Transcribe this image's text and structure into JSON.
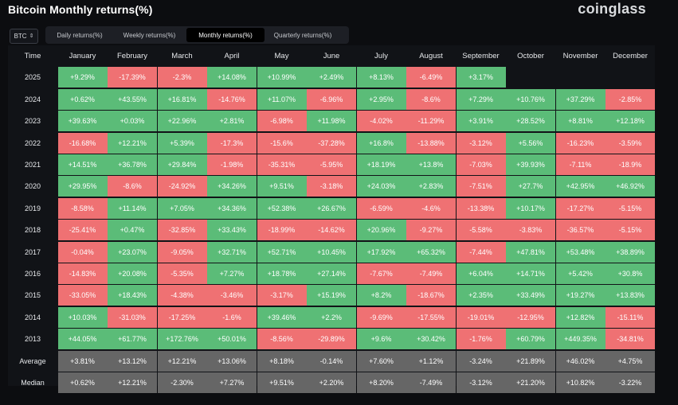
{
  "header": {
    "title": "Bitcoin Monthly returns(%)",
    "logo": "coinglass"
  },
  "controls": {
    "asset": "BTC",
    "tabs": [
      "Daily returns(%)",
      "Weekly returns(%)",
      "Monthly returns(%)",
      "Quarterly returns(%)"
    ],
    "active_tab": 2
  },
  "table": {
    "headers": [
      "Time",
      "January",
      "February",
      "March",
      "April",
      "May",
      "June",
      "July",
      "August",
      "September",
      "October",
      "November",
      "December"
    ],
    "rows": [
      {
        "year": "2025",
        "values": [
          "+9.29%",
          "-17.39%",
          "-2.3%",
          "+14.08%",
          "+10.99%",
          "+2.49%",
          "+8.13%",
          "-6.49%",
          "+3.17%",
          "",
          "",
          ""
        ]
      },
      {
        "year": "2024",
        "values": [
          "+0.62%",
          "+43.55%",
          "+16.81%",
          "-14.76%",
          "+11.07%",
          "-6.96%",
          "+2.95%",
          "-8.6%",
          "+7.29%",
          "+10.76%",
          "+37.29%",
          "-2.85%"
        ]
      },
      {
        "year": "2023",
        "values": [
          "+39.63%",
          "+0.03%",
          "+22.96%",
          "+2.81%",
          "-6.98%",
          "+11.98%",
          "-4.02%",
          "-11.29%",
          "+3.91%",
          "+28.52%",
          "+8.81%",
          "+12.18%"
        ]
      },
      {
        "year": "2022",
        "values": [
          "-16.68%",
          "+12.21%",
          "+5.39%",
          "-17.3%",
          "-15.6%",
          "-37.28%",
          "+16.8%",
          "-13.88%",
          "-3.12%",
          "+5.56%",
          "-16.23%",
          "-3.59%"
        ]
      },
      {
        "year": "2021",
        "values": [
          "+14.51%",
          "+36.78%",
          "+29.84%",
          "-1.98%",
          "-35.31%",
          "-5.95%",
          "+18.19%",
          "+13.8%",
          "-7.03%",
          "+39.93%",
          "-7.11%",
          "-18.9%"
        ]
      },
      {
        "year": "2020",
        "values": [
          "+29.95%",
          "-8.6%",
          "-24.92%",
          "+34.26%",
          "+9.51%",
          "-3.18%",
          "+24.03%",
          "+2.83%",
          "-7.51%",
          "+27.7%",
          "+42.95%",
          "+46.92%"
        ]
      },
      {
        "year": "2019",
        "values": [
          "-8.58%",
          "+11.14%",
          "+7.05%",
          "+34.36%",
          "+52.38%",
          "+26.67%",
          "-6.59%",
          "-4.6%",
          "-13.38%",
          "+10.17%",
          "-17.27%",
          "-5.15%"
        ]
      },
      {
        "year": "2018",
        "values": [
          "-25.41%",
          "+0.47%",
          "-32.85%",
          "+33.43%",
          "-18.99%",
          "-14.62%",
          "+20.96%",
          "-9.27%",
          "-5.58%",
          "-3.83%",
          "-36.57%",
          "-5.15%"
        ]
      },
      {
        "year": "2017",
        "values": [
          "-0.04%",
          "+23.07%",
          "-9.05%",
          "+32.71%",
          "+52.71%",
          "+10.45%",
          "+17.92%",
          "+65.32%",
          "-7.44%",
          "+47.81%",
          "+53.48%",
          "+38.89%"
        ]
      },
      {
        "year": "2016",
        "values": [
          "-14.83%",
          "+20.08%",
          "-5.35%",
          "+7.27%",
          "+18.78%",
          "+27.14%",
          "-7.67%",
          "-7.49%",
          "+6.04%",
          "+14.71%",
          "+5.42%",
          "+30.8%"
        ]
      },
      {
        "year": "2015",
        "values": [
          "-33.05%",
          "+18.43%",
          "-4.38%",
          "-3.46%",
          "-3.17%",
          "+15.19%",
          "+8.2%",
          "-18.67%",
          "+2.35%",
          "+33.49%",
          "+19.27%",
          "+13.83%"
        ]
      },
      {
        "year": "2014",
        "values": [
          "+10.03%",
          "-31.03%",
          "-17.25%",
          "-1.6%",
          "+39.46%",
          "+2.2%",
          "-9.69%",
          "-17.55%",
          "-19.01%",
          "-12.95%",
          "+12.82%",
          "-15.11%"
        ]
      },
      {
        "year": "2013",
        "values": [
          "+44.05%",
          "+61.77%",
          "+172.76%",
          "+50.01%",
          "-8.56%",
          "-29.89%",
          "+9.6%",
          "+30.42%",
          "-1.76%",
          "+60.79%",
          "+449.35%",
          "-34.81%"
        ]
      }
    ],
    "summary": [
      {
        "label": "Average",
        "values": [
          "+3.81%",
          "+13.12%",
          "+12.21%",
          "+13.06%",
          "+8.18%",
          "-0.14%",
          "+7.60%",
          "+1.12%",
          "-3.24%",
          "+21.89%",
          "+46.02%",
          "+4.75%"
        ]
      },
      {
        "label": "Median",
        "values": [
          "+0.62%",
          "+12.21%",
          "-2.30%",
          "+7.27%",
          "+9.51%",
          "+2.20%",
          "+8.20%",
          "-7.49%",
          "-3.12%",
          "+21.20%",
          "+10.82%",
          "-3.22%"
        ]
      }
    ]
  }
}
